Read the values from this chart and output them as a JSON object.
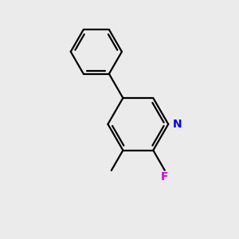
{
  "background_color": "#ebebeb",
  "bond_color": "#000000",
  "n_color": "#0000ee",
  "f_color": "#dd00dd",
  "line_width": 1.6,
  "font_size_labels": 10,
  "figsize": [
    3.0,
    3.0
  ],
  "dpi": 100
}
